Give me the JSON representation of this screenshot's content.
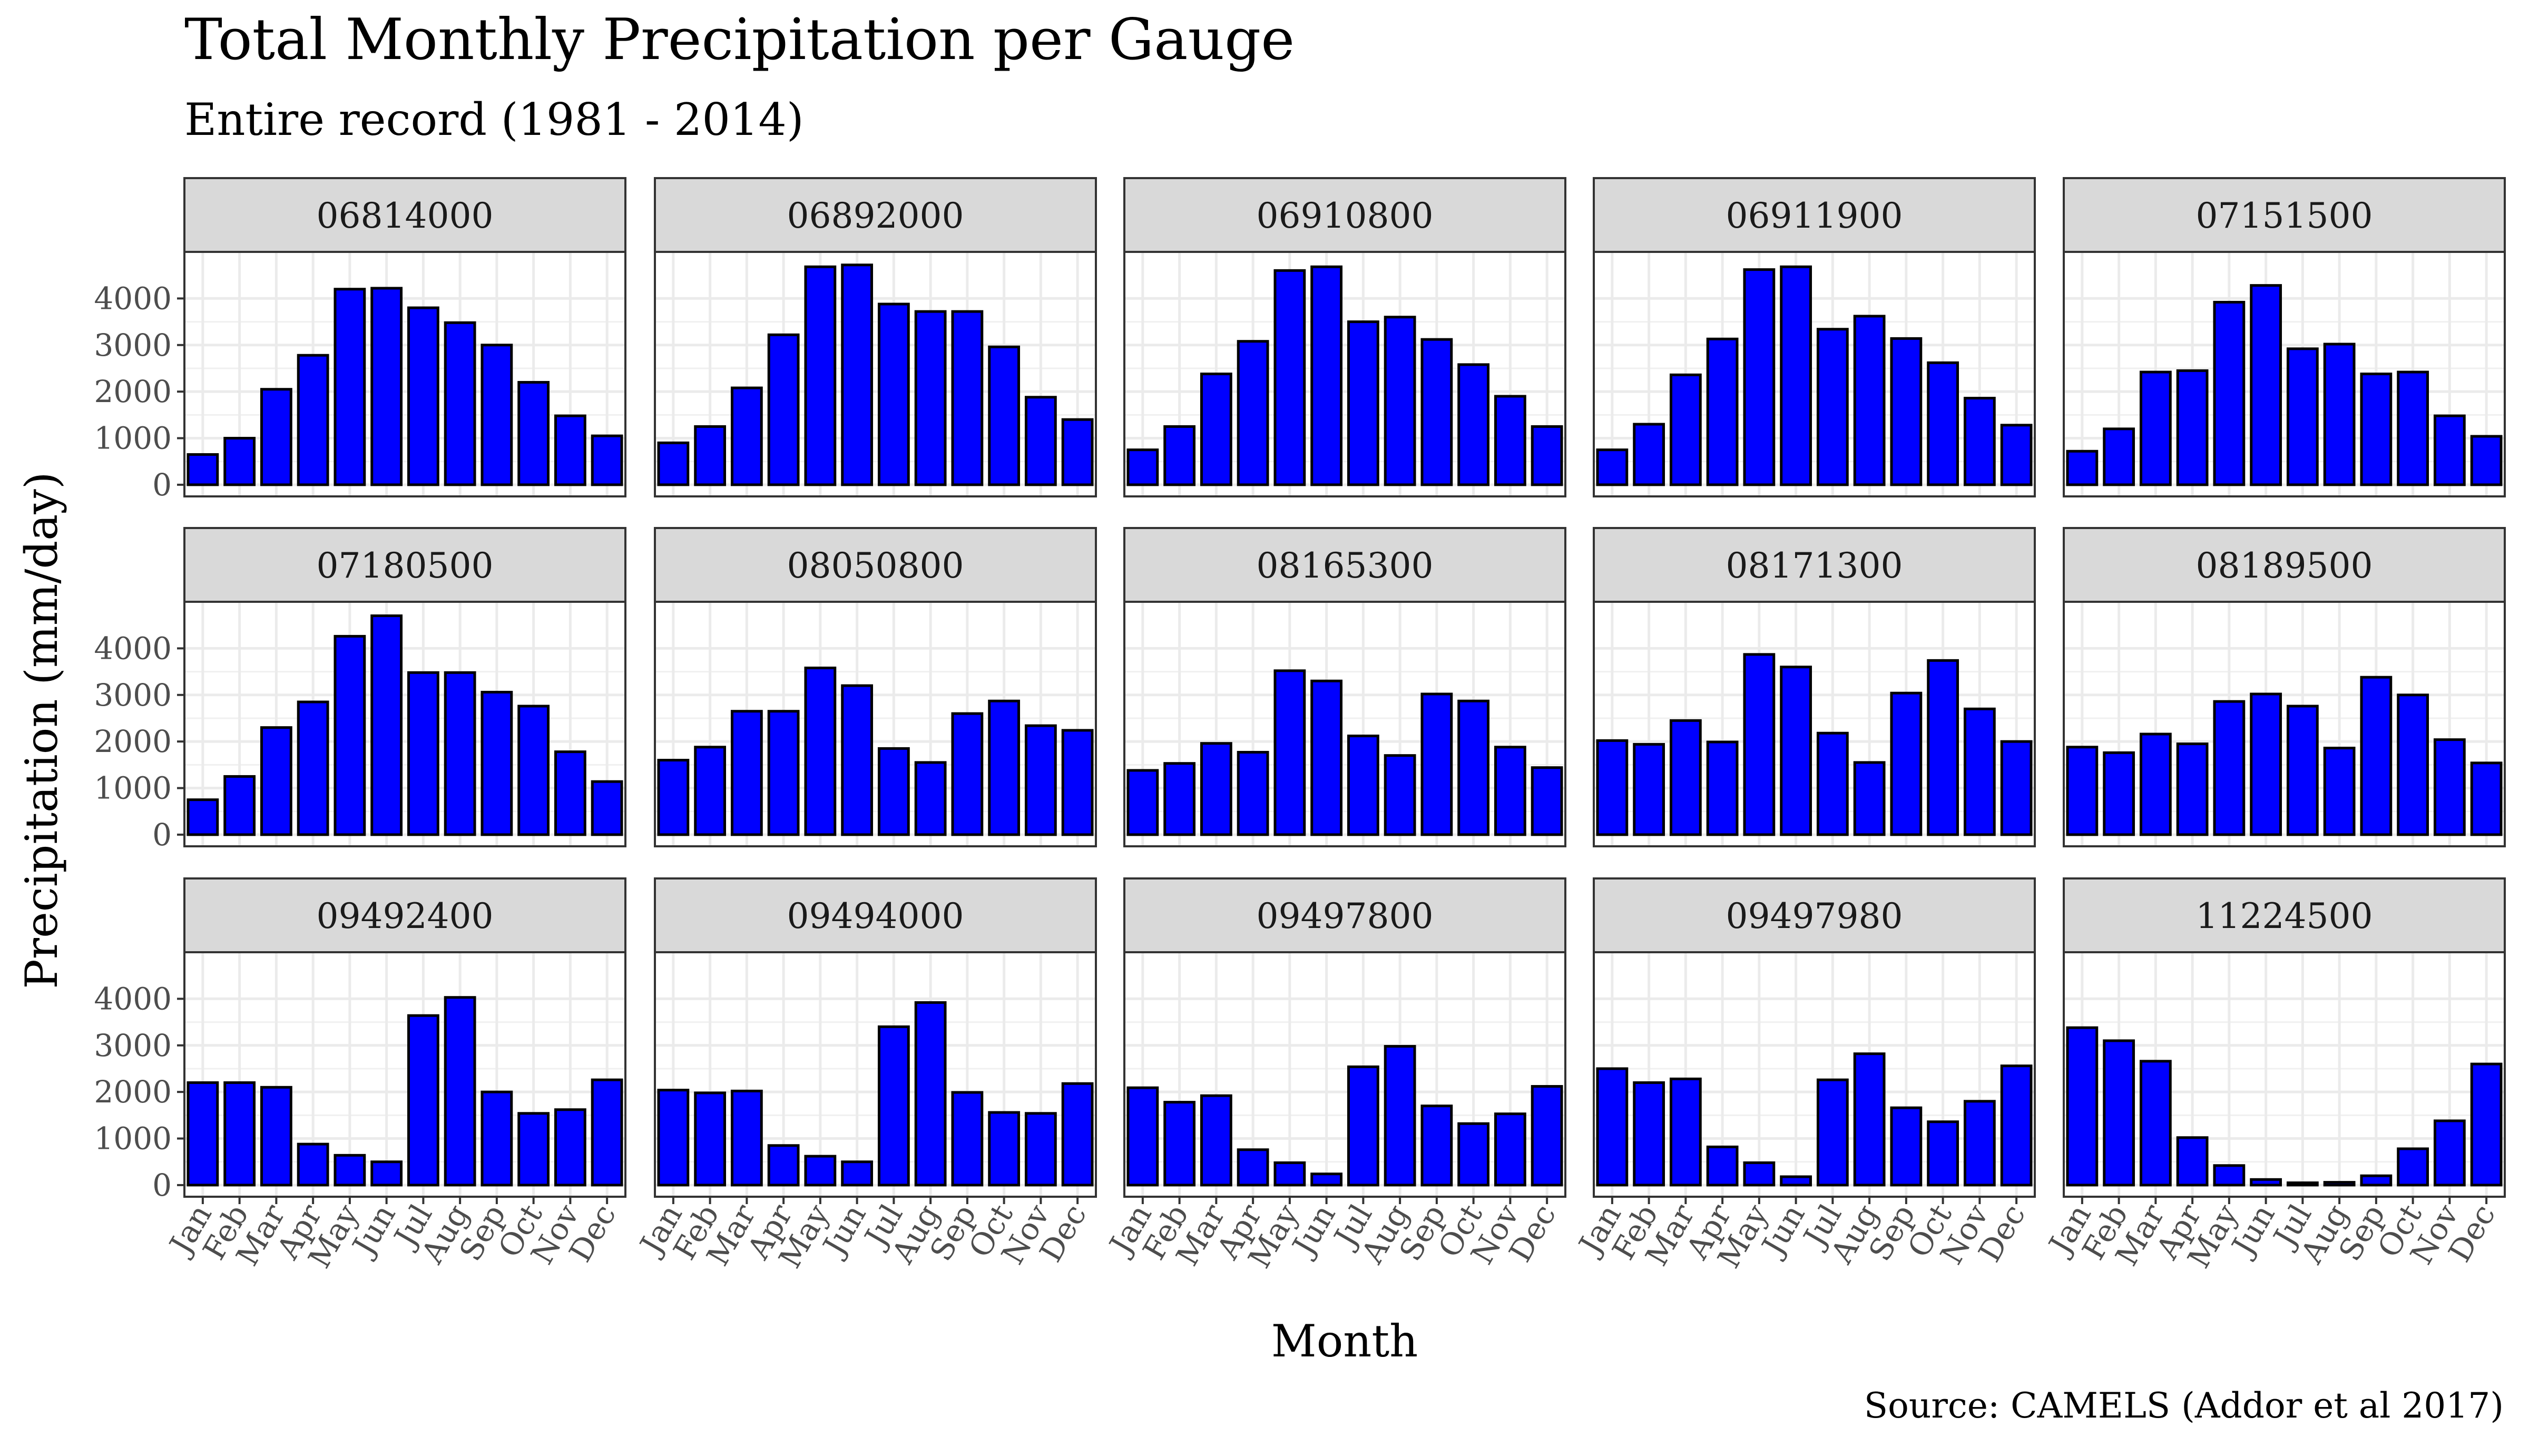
{
  "chart_data": {
    "type": "bar",
    "layout": "facet-grid-3x5",
    "title": "Total Monthly Precipitation per Gauge",
    "subtitle": "Entire record (1981 - 2014)",
    "xlabel": "Month",
    "ylabel": "Precipitation (mm/day)",
    "caption": "Source: CAMELS (Addor et al 2017)",
    "categories": [
      "Jan",
      "Feb",
      "Mar",
      "Apr",
      "May",
      "Jun",
      "Jul",
      "Aug",
      "Sep",
      "Oct",
      "Nov",
      "Dec"
    ],
    "yticks": [
      0,
      1000,
      2000,
      3000,
      4000
    ],
    "ylim": [
      -250,
      5000
    ],
    "grid": true,
    "bar_color": "#0000ff",
    "bar_outline": "#000000",
    "strip_color": "#d9d9d9",
    "panels": [
      {
        "gauge": "06814000",
        "values": [
          650,
          1000,
          2050,
          2780,
          4200,
          4220,
          3800,
          3480,
          3000,
          2200,
          1480,
          1050
        ]
      },
      {
        "gauge": "06892000",
        "values": [
          900,
          1250,
          2080,
          3220,
          4680,
          4720,
          3880,
          3720,
          3720,
          2960,
          1880,
          1400
        ]
      },
      {
        "gauge": "06910800",
        "values": [
          750,
          1250,
          2380,
          3080,
          4600,
          4680,
          3500,
          3600,
          3120,
          2580,
          1900,
          1250
        ]
      },
      {
        "gauge": "06911900",
        "values": [
          750,
          1300,
          2360,
          3130,
          4620,
          4680,
          3340,
          3620,
          3140,
          2620,
          1860,
          1280
        ]
      },
      {
        "gauge": "07151500",
        "values": [
          720,
          1200,
          2420,
          2450,
          3920,
          4280,
          2920,
          3020,
          2380,
          2420,
          1480,
          1040
        ]
      },
      {
        "gauge": "07180500",
        "values": [
          750,
          1250,
          2300,
          2850,
          4260,
          4700,
          3480,
          3480,
          3060,
          2760,
          1780,
          1140
        ]
      },
      {
        "gauge": "08050800",
        "values": [
          1600,
          1880,
          2650,
          2650,
          3580,
          3200,
          1850,
          1550,
          2600,
          2870,
          2340,
          2240
        ]
      },
      {
        "gauge": "08165300",
        "values": [
          1380,
          1530,
          1960,
          1770,
          3520,
          3300,
          2120,
          1700,
          3020,
          2870,
          1880,
          1440
        ]
      },
      {
        "gauge": "08171300",
        "values": [
          2020,
          1940,
          2450,
          1990,
          3870,
          3600,
          2180,
          1550,
          3040,
          3740,
          2700,
          2000
        ]
      },
      {
        "gauge": "08189500",
        "values": [
          1880,
          1760,
          2160,
          1950,
          2860,
          3020,
          2760,
          1860,
          3380,
          3000,
          2040,
          1540
        ]
      },
      {
        "gauge": "09492400",
        "values": [
          2200,
          2200,
          2100,
          880,
          640,
          500,
          3640,
          4030,
          2000,
          1540,
          1620,
          2260
        ]
      },
      {
        "gauge": "09494000",
        "values": [
          2040,
          1980,
          2020,
          850,
          620,
          500,
          3400,
          3920,
          1990,
          1560,
          1540,
          2180
        ]
      },
      {
        "gauge": "09497800",
        "values": [
          2090,
          1780,
          1920,
          760,
          480,
          240,
          2540,
          2980,
          1700,
          1320,
          1530,
          2120
        ]
      },
      {
        "gauge": "09497980",
        "values": [
          2500,
          2200,
          2280,
          820,
          480,
          180,
          2260,
          2820,
          1660,
          1360,
          1800,
          2560
        ]
      },
      {
        "gauge": "11224500",
        "values": [
          3380,
          3100,
          2660,
          1020,
          420,
          120,
          50,
          60,
          200,
          780,
          1380,
          2600
        ]
      }
    ]
  }
}
